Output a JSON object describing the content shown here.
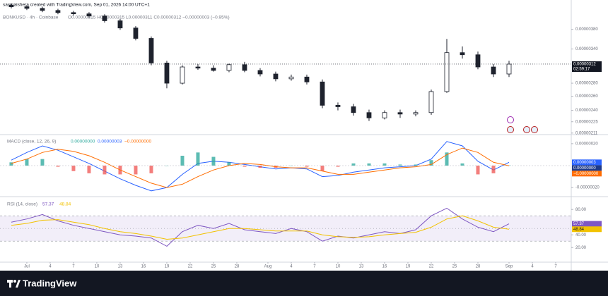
{
  "header": {
    "attribution": "sasmaishera created with TradingView.com, Sep 01, 2026 14:00 UTC+1"
  },
  "footer": {
    "brand": "TradingView"
  },
  "chart_data": [
    {
      "type": "candlestick",
      "title": "BONKUSD · 4h · Coinbase",
      "ohlc_text": "O0.00000315 H0.00000315 L0.00000311 C0.00000312 −0.00000003 (−0.95%)",
      "color": "#1e222d",
      "log_scale": true,
      "x": [
        0,
        2,
        4,
        6,
        8,
        10,
        12,
        14,
        16,
        18,
        20,
        22,
        24,
        26,
        28,
        30,
        32,
        34,
        36,
        38,
        40,
        42,
        44,
        46,
        48,
        50,
        52,
        54,
        56,
        58,
        60,
        62,
        64
      ],
      "open": [
        4.36e-06,
        4.32e-06,
        4.28e-06,
        4.23e-06,
        4.18e-06,
        4.15e-06,
        4.1e-06,
        3.99e-06,
        3.83e-06,
        3.61e-06,
        3.14e-06,
        2.8e-06,
        3.07e-06,
        3.05e-06,
        3.01e-06,
        3.11e-06,
        3.01e-06,
        2.95e-06,
        2.87e-06,
        2.9e-06,
        2.82e-06,
        2.47e-06,
        2.45e-06,
        2.37e-06,
        2.3e-06,
        2.37e-06,
        2.35e-06,
        2.37e-06,
        2.67e-06,
        3.33e-06,
        3.29e-06,
        3.07e-06,
        2.95e-06
      ],
      "high": [
        4.4e-06,
        4.36e-06,
        4.32e-06,
        4.27e-06,
        4.22e-06,
        4.19e-06,
        4.14e-06,
        4.03e-06,
        3.87e-06,
        3.65e-06,
        3.18e-06,
        3.1e-06,
        3.12e-06,
        3.1e-06,
        3.13e-06,
        3.16e-06,
        3.05e-06,
        2.99e-06,
        2.94e-06,
        2.94e-06,
        2.86e-06,
        2.51e-06,
        2.49e-06,
        2.41e-06,
        2.4e-06,
        2.41e-06,
        2.4e-06,
        2.7e-06,
        3.6e-06,
        3.45e-06,
        3.35e-06,
        3.12e-06,
        3.18e-06
      ],
      "low": [
        4.28e-06,
        4.24e-06,
        4.19e-06,
        4.14e-06,
        4.11e-06,
        4.06e-06,
        3.95e-06,
        3.79e-06,
        3.57e-06,
        3.1e-06,
        2.72e-06,
        2.78e-06,
        3.02e-06,
        2.99e-06,
        2.98e-06,
        2.98e-06,
        2.91e-06,
        2.83e-06,
        2.84e-06,
        2.78e-06,
        2.43e-06,
        2.4e-06,
        2.33e-06,
        2.26e-06,
        2.28e-06,
        2.3e-06,
        2.32e-06,
        2.34e-06,
        2.65e-06,
        3.22e-06,
        3.03e-06,
        2.9e-06,
        2.9e-06
      ],
      "close": [
        4.32e-06,
        4.28e-06,
        4.23e-06,
        4.18e-06,
        4.15e-06,
        4.1e-06,
        3.99e-06,
        3.83e-06,
        3.61e-06,
        3.14e-06,
        2.8e-06,
        3.07e-06,
        3.05e-06,
        3.01e-06,
        3.11e-06,
        3.01e-06,
        2.95e-06,
        2.87e-06,
        2.9e-06,
        2.82e-06,
        2.47e-06,
        2.45e-06,
        2.37e-06,
        2.3e-06,
        2.37e-06,
        2.35e-06,
        2.37e-06,
        2.67e-06,
        3.33e-06,
        3.29e-06,
        3.07e-06,
        2.95e-06,
        3.12e-06
      ],
      "last_price_label": "0.00000312",
      "countdown": "02:59:17",
      "xlim": [
        -1.45,
        72
      ],
      "ylim": [
        2.1e-06,
        4.4e-06
      ],
      "yticks": [
        {
          "value": 3.8e-06,
          "label": "0.00000380"
        },
        {
          "value": 3.4e-06,
          "label": "0.00000340"
        },
        {
          "value": 2.8e-06,
          "label": "0.00000280"
        },
        {
          "value": 2.6e-06,
          "label": "0.00000260"
        },
        {
          "value": 2.4e-06,
          "label": "0.00000240"
        },
        {
          "value": 2.25e-06,
          "label": "0.00000225"
        },
        {
          "value": 2.11e-06,
          "label": "0.00000211"
        }
      ]
    },
    {
      "type": "macd",
      "title": "MACD (close, 12, 26, 9)",
      "x": [
        0,
        2,
        4,
        6,
        8,
        10,
        12,
        14,
        16,
        18,
        20,
        22,
        24,
        26,
        28,
        30,
        32,
        34,
        36,
        38,
        40,
        42,
        44,
        46,
        48,
        50,
        52,
        54,
        56,
        58,
        60,
        62,
        64
      ],
      "xlim": [
        -1.45,
        72
      ],
      "ylim": [
        -2.7e-07,
        2.7e-07
      ],
      "yticks": [
        {
          "value": 2e-07,
          "label": "0.00000020"
        },
        {
          "value": -2e-07,
          "label": "-0.00000020"
        }
      ],
      "series": [
        {
          "kind": "histogram",
          "color": "#26a69a",
          "negative_color": "#ef5350",
          "legend_label": "0.00000000",
          "values": [
            3e-08,
            6e-08,
            6e-08,
            -1e-08,
            -5e-08,
            -7e-08,
            -8e-08,
            -8e-08,
            -8e-08,
            -7e-08,
            0,
            9e-08,
            1.2e-07,
            8e-08,
            3e-08,
            -1e-08,
            -2e-08,
            -2e-08,
            0,
            -1e-08,
            -5e-08,
            -1e-08,
            2e-08,
            2e-08,
            2e-08,
            1e-08,
            1e-08,
            5e-08,
            1.2e-07,
            2e-08,
            -8e-08,
            -7e-08,
            3e-09
          ]
        },
        {
          "kind": "line",
          "color": "#2962ff",
          "legend_label": "0.00000003",
          "values": [
            5e-08,
            1.2e-07,
            1.8e-07,
            1.4e-07,
            8e-08,
            2e-08,
            -5e-08,
            -1.2e-07,
            -1.8e-07,
            -2.3e-07,
            -2e-07,
            -8e-08,
            2e-08,
            4e-08,
            3e-08,
            1e-08,
            -1e-08,
            -3e-08,
            -2e-08,
            -3e-08,
            -1e-07,
            -9e-08,
            -6e-08,
            -4e-08,
            -2e-08,
            -1e-08,
            0,
            6e-08,
            2.2e-07,
            1.8e-07,
            4e-08,
            -4e-08,
            3e-08
          ]
        },
        {
          "kind": "line",
          "color": "#ff6d00",
          "legend_label": "−0.00000000",
          "values": [
            2e-08,
            6e-08,
            1.2e-07,
            1.5e-07,
            1.3e-07,
            9e-08,
            3e-08,
            -4e-08,
            -1e-07,
            -1.6e-07,
            -2e-07,
            -1.7e-07,
            -1e-07,
            -4e-08,
            0,
            2e-08,
            1e-08,
            -1e-08,
            -2e-08,
            -2e-08,
            -5e-08,
            -8e-08,
            -8e-08,
            -6e-08,
            -4e-08,
            -2e-08,
            -1e-08,
            1e-08,
            1e-07,
            1.6e-07,
            1.2e-07,
            3e-08,
            -2e-09
          ]
        }
      ]
    },
    {
      "type": "rsi",
      "title": "RSI (14, close)",
      "x": [
        0,
        2,
        4,
        6,
        8,
        10,
        12,
        14,
        16,
        18,
        20,
        22,
        24,
        26,
        28,
        30,
        32,
        34,
        36,
        38,
        40,
        42,
        44,
        46,
        48,
        50,
        52,
        54,
        56,
        58,
        60,
        62,
        64
      ],
      "xlim": [
        -1.45,
        72
      ],
      "ylim": [
        -2,
        98
      ],
      "levels": [
        70,
        50,
        30
      ],
      "yticks": [
        {
          "value": 80,
          "label": "80.00"
        },
        {
          "value": 40,
          "label": "40.00"
        },
        {
          "value": 20,
          "label": "20.00"
        }
      ],
      "xticks": [
        {
          "value": 2,
          "label": "Jul"
        },
        {
          "value": 5,
          "label": "4"
        },
        {
          "value": 8,
          "label": "7"
        },
        {
          "value": 11,
          "label": "10"
        },
        {
          "value": 14,
          "label": "13"
        },
        {
          "value": 17,
          "label": "16"
        },
        {
          "value": 20,
          "label": "19"
        },
        {
          "value": 23,
          "label": "22"
        },
        {
          "value": 26,
          "label": "25"
        },
        {
          "value": 29,
          "label": "28"
        },
        {
          "value": 33,
          "label": "Aug"
        },
        {
          "value": 36,
          "label": "4"
        },
        {
          "value": 39,
          "label": "7"
        },
        {
          "value": 42,
          "label": "10"
        },
        {
          "value": 45,
          "label": "13"
        },
        {
          "value": 48,
          "label": "16"
        },
        {
          "value": 51,
          "label": "19"
        },
        {
          "value": 54,
          "label": "22"
        },
        {
          "value": 57,
          "label": "25"
        },
        {
          "value": 60,
          "label": "28"
        },
        {
          "value": 64,
          "label": "Sep"
        },
        {
          "value": 67,
          "label": "4"
        },
        {
          "value": 70,
          "label": "7"
        }
      ],
      "series": [
        {
          "color": "#7e57c2",
          "values": [
            60,
            65,
            72,
            62,
            55,
            50,
            45,
            40,
            38,
            35,
            22,
            45,
            55,
            50,
            58,
            48,
            45,
            42,
            50,
            45,
            30,
            38,
            35,
            40,
            45,
            42,
            48,
            70,
            82,
            65,
            52,
            45,
            57.37
          ]
        },
        {
          "color": "#f2c200",
          "values": [
            55,
            58,
            63,
            64,
            60,
            56,
            50,
            45,
            42,
            38,
            33,
            35,
            40,
            45,
            50,
            50,
            48,
            46,
            46,
            46,
            40,
            37,
            36,
            37,
            40,
            42,
            44,
            52,
            65,
            70,
            62,
            52,
            48.84
          ]
        }
      ]
    }
  ]
}
